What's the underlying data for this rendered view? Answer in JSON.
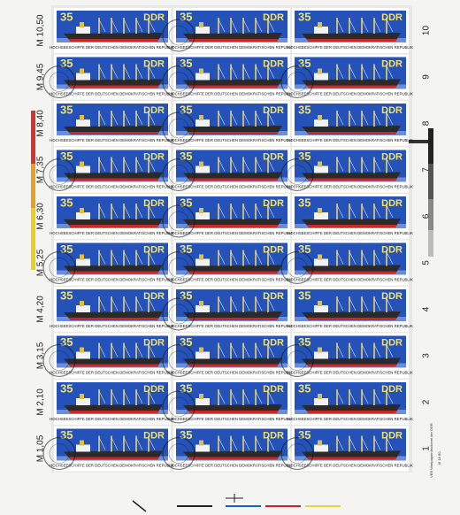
{
  "stamp": {
    "value": "35",
    "country": "DDR",
    "caption": "HOCHSEESCHIFFE DER DEUTSCHEN DEMOKRATISCHEN REPUBLIK"
  },
  "rows": [
    {
      "margin_value": "M 10,50",
      "row_number": "10"
    },
    {
      "margin_value": "M 9,45",
      "row_number": "9"
    },
    {
      "margin_value": "M 8,40",
      "row_number": "8"
    },
    {
      "margin_value": "M 7,35",
      "row_number": "7"
    },
    {
      "margin_value": "M 6,30",
      "row_number": "6"
    },
    {
      "margin_value": "M 5,25",
      "row_number": "5"
    },
    {
      "margin_value": "M 4,20",
      "row_number": "4"
    },
    {
      "margin_value": "M 3,15",
      "row_number": "3"
    },
    {
      "margin_value": "M 2,10",
      "row_number": "2"
    },
    {
      "margin_value": "M 1,05",
      "row_number": "1"
    }
  ],
  "imprint": "VEB Wertpapierdruckerei der DDR",
  "imprint_code": "III 18 80"
}
